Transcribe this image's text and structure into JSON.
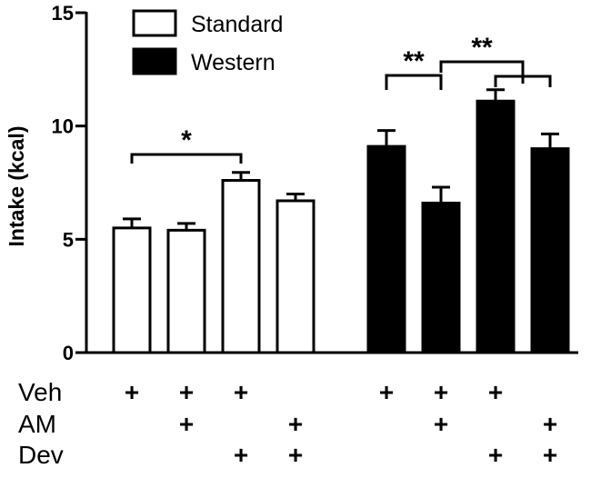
{
  "chart_data": {
    "type": "bar",
    "ylabel": "Intake (kcal)",
    "ylim": [
      0,
      15
    ],
    "yticks": [
      0,
      5,
      10,
      15
    ],
    "grid": false,
    "legend_position": "top-left",
    "legend": [
      {
        "name": "Standard",
        "fill": "#ffffff"
      },
      {
        "name": "Western",
        "fill": "#000000"
      }
    ],
    "groups": [
      {
        "name": "Standard",
        "color": "#ffffff",
        "values": [
          5.5,
          5.4,
          7.6,
          6.7
        ],
        "errors": [
          0.4,
          0.3,
          0.35,
          0.3
        ]
      },
      {
        "name": "Western",
        "color": "#000000",
        "values": [
          9.1,
          6.6,
          11.1,
          9.0
        ],
        "errors": [
          0.7,
          0.7,
          0.5,
          0.65
        ]
      }
    ],
    "conditions": {
      "rows": [
        "Veh",
        "AM",
        "Dev"
      ],
      "per_bar": [
        [
          true,
          false,
          false
        ],
        [
          true,
          true,
          false
        ],
        [
          true,
          false,
          true
        ],
        [
          false,
          true,
          true
        ],
        [
          true,
          false,
          false
        ],
        [
          true,
          true,
          false
        ],
        [
          true,
          false,
          true
        ],
        [
          false,
          true,
          true
        ]
      ],
      "marker": "+"
    },
    "significance": [
      {
        "from": 0,
        "to": 2,
        "label": "*"
      },
      {
        "from": 4,
        "to": 5,
        "label": "**"
      },
      {
        "from": 5,
        "to": 6.5,
        "label": "**"
      }
    ]
  }
}
